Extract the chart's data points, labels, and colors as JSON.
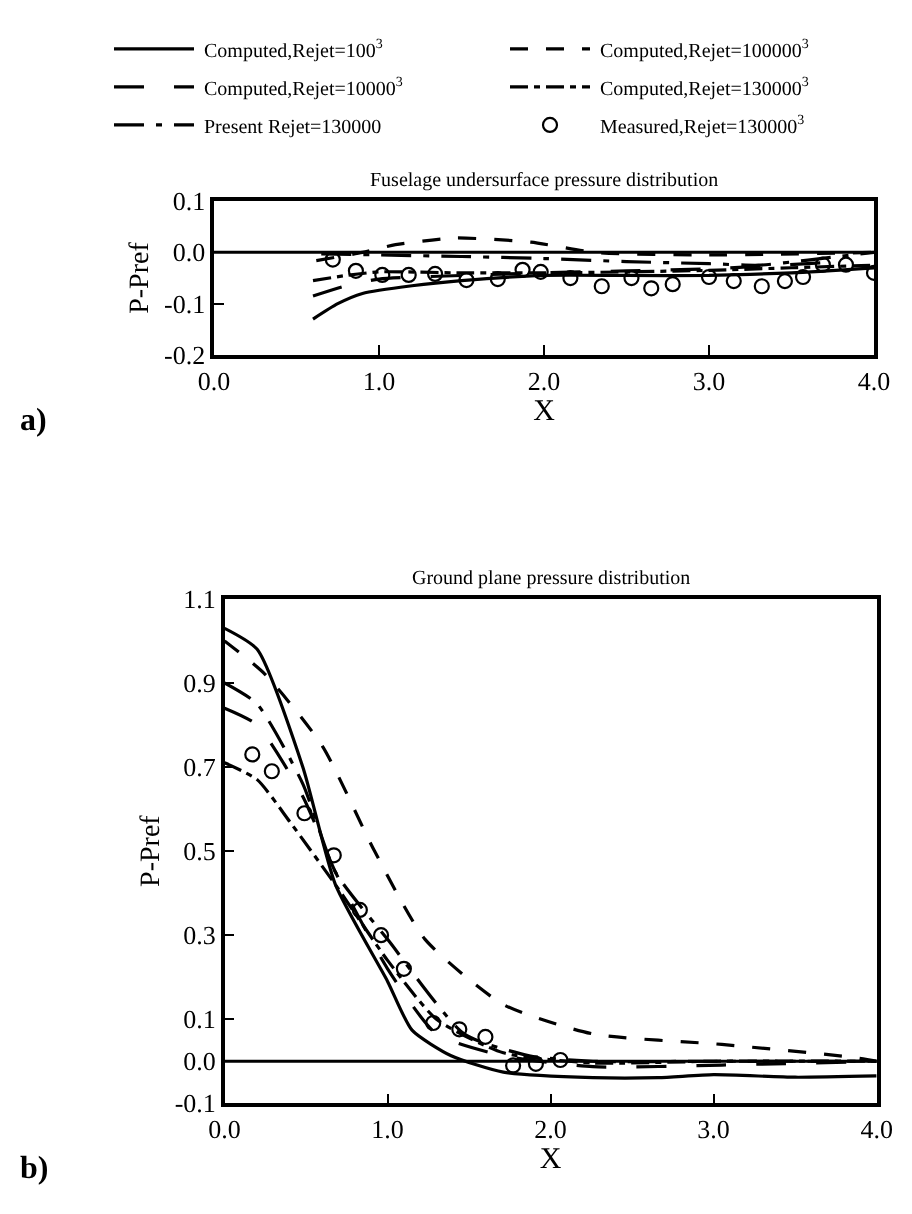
{
  "chart_data": [
    {
      "type": "line",
      "title": "Fuselage undersurface pressure distribution",
      "xlabel": "X",
      "ylabel": "P-Pref",
      "annotations": [
        "a)"
      ],
      "xlim": [
        0,
        4
      ],
      "xticks": [
        {
          "value": 0,
          "label": "0.0"
        },
        {
          "value": 1,
          "label": "1.0"
        },
        {
          "value": 2,
          "label": "2.0"
        },
        {
          "value": 3,
          "label": "3.0"
        },
        {
          "value": 4,
          "label": "4.0"
        }
      ],
      "ylim": [
        -0.2,
        0.1
      ],
      "yticks": [
        -0.2,
        -0.1,
        {
          "value": 0,
          "label": "0.0"
        },
        0.1
      ],
      "legend": "top",
      "ref_lines": [
        {
          "axis": "y",
          "value": 0,
          "color": "#000000",
          "line_style": "solid"
        }
      ],
      "series": [
        {
          "name": "Computed,Rejet=100$^{3}$",
          "color": "#000000",
          "line_style": "solid",
          "marker": "none",
          "x": [
            0.6,
            0.75,
            0.9,
            1.2,
            1.5,
            2.0,
            2.5,
            3.0,
            3.5,
            4.0
          ],
          "values": [
            -0.13,
            -0.1,
            -0.08,
            -0.065,
            -0.055,
            -0.045,
            -0.045,
            -0.045,
            -0.04,
            -0.03
          ]
        },
        {
          "name": "Computed,Rejet=100000$^{3}$",
          "color": "#000000",
          "line_style": "dashed",
          "marker": "none",
          "x": [
            0.62,
            0.9,
            1.1,
            1.46,
            1.92,
            2.31,
            3.0,
            4.0
          ],
          "values": [
            -0.016,
            0.0,
            0.015,
            0.028,
            0.02,
            0.0,
            -0.005,
            0.0
          ]
        },
        {
          "name": "Computed,Rejet=10000$^{3}$",
          "color": "#000000",
          "line_style": "dashed",
          "marker": "none",
          "x": [
            0.6,
            0.8,
            1.0,
            1.5,
            2.0,
            2.5,
            3.0,
            3.7
          ],
          "values": [
            -0.085,
            -0.065,
            -0.052,
            -0.045,
            -0.04,
            -0.036,
            -0.032,
            -0.02
          ]
        },
        {
          "name": "Computed,Rejet=130000$^{3}$",
          "color": "#000000",
          "line_style": "dashed",
          "marker": "none",
          "x": [
            0.6,
            0.8,
            1.0,
            1.5,
            2.0,
            2.5,
            3.0,
            3.5,
            4.0
          ],
          "values": [
            -0.055,
            -0.045,
            -0.038,
            -0.04,
            -0.04,
            -0.038,
            -0.035,
            -0.03,
            -0.025
          ]
        },
        {
          "name": "Measured,Rejet=130000$^{3}$",
          "type": "scatter",
          "color": "#000000",
          "marker": "circle",
          "x": [
            0.72,
            0.86,
            1.02,
            1.18,
            1.34,
            1.53,
            1.72,
            1.87,
            1.98,
            2.16,
            2.35,
            2.53,
            2.65,
            2.78,
            3.0,
            3.15,
            3.32,
            3.46,
            3.57,
            3.69,
            3.83,
            4.0
          ],
          "values": [
            -0.014,
            -0.036,
            -0.044,
            -0.044,
            -0.042,
            -0.054,
            -0.052,
            -0.034,
            -0.038,
            -0.05,
            -0.066,
            -0.05,
            -0.07,
            -0.062,
            -0.048,
            -0.056,
            -0.066,
            -0.056,
            -0.048,
            -0.024,
            -0.024,
            -0.04
          ]
        },
        {
          "name": "Present Rejet=130000",
          "color": "#000000",
          "line_style": "dashed",
          "marker": "none",
          "x": [
            0.65,
            1.0,
            1.5,
            2.0,
            2.5,
            3.0,
            3.3,
            3.6,
            4.0
          ],
          "values": [
            -0.003,
            -0.005,
            -0.008,
            -0.012,
            -0.018,
            -0.022,
            -0.025,
            -0.015,
            0.0
          ]
        }
      ]
    },
    {
      "type": "line",
      "title": "Ground plane pressure distribution",
      "xlabel": "X",
      "ylabel": "P-Pref",
      "annotations": [
        "b)"
      ],
      "xlim": [
        0,
        4
      ],
      "xticks": [
        {
          "value": 0,
          "label": "0.0"
        },
        {
          "value": 1,
          "label": "1.0"
        },
        {
          "value": 2,
          "label": "2.0"
        },
        {
          "value": 3,
          "label": "3.0"
        },
        {
          "value": 4,
          "label": "4.0"
        }
      ],
      "ylim": [
        -0.1,
        1.1
      ],
      "yticks": [
        -0.1,
        {
          "value": 0,
          "label": "0.0"
        },
        0.1,
        0.3,
        0.5,
        0.7,
        0.9,
        1.1
      ],
      "ref_lines": [
        {
          "axis": "y",
          "value": 0,
          "color": "#000000",
          "line_style": "solid"
        }
      ],
      "series": [
        {
          "color": "#000000",
          "line_style": "solid",
          "marker": "none",
          "x": [
            0,
            0.2,
            0.48,
            0.68,
            1.0,
            1.15,
            1.39,
            1.71,
            2.26,
            2.66,
            3.0,
            3.5,
            4.0
          ],
          "values": [
            1.03,
            0.98,
            0.7,
            0.42,
            0.19,
            0.074,
            0.013,
            -0.026,
            -0.039,
            -0.039,
            -0.032,
            -0.038,
            -0.035
          ]
        },
        {
          "color": "#000000",
          "line_style": "dashed",
          "marker": "none",
          "x": [
            0,
            0.25,
            0.6,
            0.92,
            1.23,
            1.71,
            2.26,
            3.05,
            3.84,
            4.0
          ],
          "values": [
            1.0,
            0.92,
            0.75,
            0.5,
            0.29,
            0.135,
            0.065,
            0.04,
            0.01,
            0.0
          ]
        },
        {
          "color": "#000000",
          "line_style": "dashed",
          "marker": "none",
          "x": [
            0,
            0.2,
            0.48,
            0.68,
            1.0,
            1.3,
            1.71,
            2.26,
            3.05,
            4.0
          ],
          "values": [
            0.84,
            0.8,
            0.63,
            0.45,
            0.22,
            0.065,
            0.013,
            -0.013,
            -0.009,
            0.0
          ]
        },
        {
          "color": "#000000",
          "line_style": "dashed",
          "marker": "none",
          "x": [
            0,
            0.2,
            0.4,
            0.68,
            1.0,
            1.3,
            1.71,
            2.26,
            3.0,
            4.0
          ],
          "values": [
            0.71,
            0.67,
            0.57,
            0.42,
            0.24,
            0.1,
            0.02,
            -0.004,
            0.0,
            0.0
          ]
        },
        {
          "type": "scatter",
          "color": "#000000",
          "marker": "circle",
          "x": [
            0.17,
            0.29,
            0.49,
            0.67,
            0.83,
            0.96,
            1.1,
            1.28,
            1.44,
            1.6,
            1.77,
            1.91,
            2.06
          ],
          "values": [
            0.73,
            0.69,
            0.59,
            0.49,
            0.36,
            0.3,
            0.22,
            0.091,
            0.076,
            0.058,
            -0.01,
            -0.006,
            0.003
          ]
        },
        {
          "color": "#000000",
          "line_style": "dashed",
          "marker": "none",
          "x": [
            0,
            0.2,
            0.48,
            0.68,
            1.0,
            1.47,
            1.87,
            2.26,
            3.0,
            4.0
          ],
          "values": [
            0.9,
            0.85,
            0.66,
            0.45,
            0.29,
            0.065,
            0.013,
            0.0,
            0.0,
            0.0
          ]
        }
      ]
    }
  ]
}
